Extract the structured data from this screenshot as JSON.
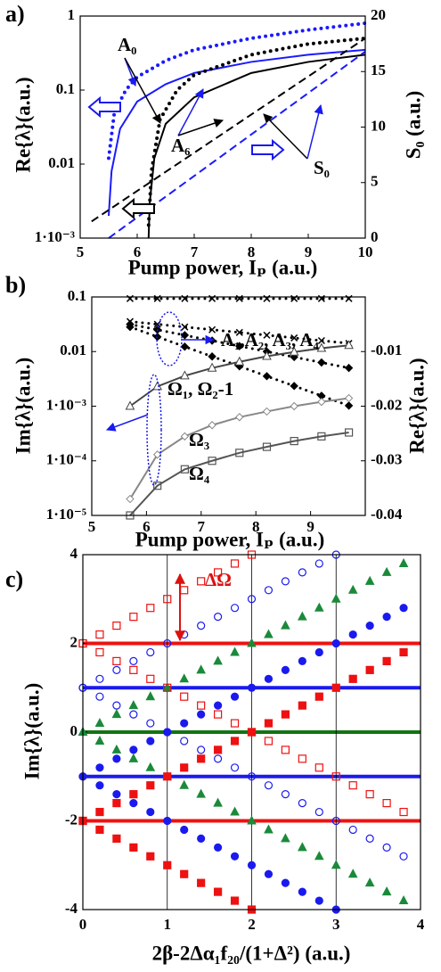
{
  "chart_data": [
    {
      "type": "line",
      "label": "a)",
      "xlabel": "Pump power, Iₚ (a.u.)",
      "ylabel": "Re{λ}(a.u.)",
      "y2label": "S₀ (a.u.)",
      "xlim": [
        5,
        10
      ],
      "xticks": [
        5,
        6,
        7,
        8,
        9,
        10
      ],
      "ylim": [
        0.001,
        1
      ],
      "ylog": true,
      "yticks": [
        1,
        0.1,
        0.01,
        {
          "value": 0.001,
          "label": "1·10⁻³"
        }
      ],
      "y2lim": [
        0,
        20
      ],
      "y2ticks": [
        0,
        5,
        10,
        15,
        20
      ],
      "annotations": [
        "A₀",
        "A₆",
        "S₀"
      ],
      "series": [
        {
          "color": "#1a1aff",
          "line": "dotted",
          "x": [
            5.5,
            5.6,
            5.8,
            6,
            6.5,
            7,
            8,
            9,
            10
          ],
          "values": [
            0.012,
            0.05,
            0.1,
            0.15,
            0.25,
            0.35,
            0.5,
            0.65,
            0.8
          ]
        },
        {
          "color": "#1a1aff",
          "line": "solid",
          "x": [
            5.5,
            5.55,
            5.7,
            6,
            6.5,
            7,
            8,
            9,
            10
          ],
          "values": [
            0.002,
            0.008,
            0.03,
            0.07,
            0.12,
            0.17,
            0.24,
            0.3,
            0.35
          ]
        },
        {
          "color": "#000000",
          "line": "dotted",
          "x": [
            6.2,
            6.25,
            6.4,
            6.7,
            7,
            8,
            9,
            10
          ],
          "values": [
            0.0015,
            0.008,
            0.04,
            0.1,
            0.16,
            0.3,
            0.42,
            0.5
          ]
        },
        {
          "color": "#000000",
          "line": "solid",
          "x": [
            6.2,
            6.22,
            6.3,
            6.5,
            7,
            8,
            9,
            10
          ],
          "values": [
            0.001,
            0.003,
            0.012,
            0.035,
            0.08,
            0.17,
            0.24,
            0.3
          ]
        },
        {
          "color": "#000000",
          "line": "dashed",
          "axis": "y2",
          "x": [
            5.2,
            10
          ],
          "values": [
            1.5,
            18
          ]
        },
        {
          "color": "#1a1aff",
          "line": "dashed",
          "axis": "y2",
          "x": [
            5.5,
            10
          ],
          "values": [
            0,
            16.8
          ]
        }
      ]
    },
    {
      "type": "line",
      "label": "b)",
      "xlabel": "Pump power, Iₚ (a.u.)",
      "ylabel": "Im{λ}(a.u.)",
      "y2label": "Re{λ}(a.u.)",
      "xlim": [
        5,
        10
      ],
      "xticks": [
        5,
        6,
        7,
        8,
        9
      ],
      "ylim": [
        1e-05,
        0.1
      ],
      "ylog": true,
      "yticks": [
        0.1,
        0.01,
        {
          "value": 0.001,
          "label": "1·10⁻³"
        },
        {
          "value": 0.0001,
          "label": "1·10⁻⁴"
        },
        {
          "value": 1e-05,
          "label": "1·10⁻⁵"
        }
      ],
      "y2lim": [
        -0.04,
        0
      ],
      "y2ticks": [
        -0.01,
        -0.02,
        -0.03,
        -0.04
      ],
      "annotations": [
        "A₁,A₂, A₃, A₄",
        "Ω₁, Ω₂-1",
        "Ω₃",
        "Ω₄"
      ],
      "x": [
        5.7,
        6.2,
        6.7,
        7.2,
        7.7,
        8.2,
        8.7,
        9.2,
        9.7
      ],
      "series": [
        {
          "color": "#000000",
          "line": "dotted",
          "marker": "cross",
          "axis": "y2",
          "values": [
            -0.0003,
            -0.0003,
            -0.0003,
            -0.0003,
            -0.0003,
            -0.0003,
            -0.0003,
            -0.0003,
            -0.0003
          ]
        },
        {
          "color": "#000000",
          "line": "dotted",
          "marker": "cross",
          "axis": "y2",
          "values": [
            -0.0045,
            -0.005,
            -0.0055,
            -0.006,
            -0.0065,
            -0.007,
            -0.0075,
            -0.008,
            -0.0085
          ]
        },
        {
          "color": "#000000",
          "line": "dotted",
          "marker": "diamond",
          "axis": "y2",
          "values": [
            -0.005,
            -0.006,
            -0.007,
            -0.008,
            -0.009,
            -0.01,
            -0.011,
            -0.012,
            -0.013
          ]
        },
        {
          "color": "#000000",
          "line": "dotted",
          "marker": "diamond",
          "axis": "y2",
          "values": [
            -0.0055,
            -0.0073,
            -0.0091,
            -0.0109,
            -0.0127,
            -0.0145,
            -0.0163,
            -0.0181,
            -0.0199
          ]
        },
        {
          "color": "#444444",
          "line": "solid",
          "marker": "triangle-open",
          "values": [
            0.001,
            0.0023,
            0.0036,
            0.005,
            0.0065,
            0.0082,
            0.0098,
            0.0115,
            0.013
          ]
        },
        {
          "color": "#888888",
          "line": "solid",
          "marker": "diamond-open",
          "values": [
            2e-05,
            0.00013,
            0.00028,
            0.00045,
            0.00063,
            0.0008,
            0.001,
            0.0012,
            0.0014
          ]
        },
        {
          "color": "#555555",
          "line": "solid",
          "marker": "square-open",
          "values": [
            1e-05,
            3.5e-05,
            7e-05,
            0.0001,
            0.00014,
            0.00018,
            0.00023,
            0.00028,
            0.00033
          ]
        }
      ]
    },
    {
      "type": "scatter",
      "label": "c)",
      "xlabel": "2β-2Δα₁f₂₀/(1+Δ²) (a.u.)",
      "ylabel": "Im{λ}(a.u.)",
      "xlim": [
        0,
        4
      ],
      "xticks": [
        0,
        1,
        2,
        3,
        4
      ],
      "xgrid": true,
      "ylim": [
        -4,
        4
      ],
      "yticks": [
        -4,
        -2,
        0,
        2,
        4
      ],
      "annotations": [
        "ΔΩ"
      ],
      "hlines": [
        {
          "value": 2,
          "color": "#ee1111"
        },
        {
          "value": 1,
          "color": "#1a1aee"
        },
        {
          "value": 0,
          "color": "#137313"
        },
        {
          "value": -1,
          "color": "#1a1aee"
        },
        {
          "value": -2,
          "color": "#ee1111"
        }
      ],
      "x": [
        0,
        0.2,
        0.4,
        0.6,
        0.8,
        1,
        1.2,
        1.4,
        1.6,
        1.8,
        2,
        2.2,
        2.4,
        2.6,
        2.8,
        3,
        3.2,
        3.4,
        3.6,
        3.8
      ],
      "series": [
        {
          "color": "#1a8a3a",
          "marker": "triangle",
          "values": [
            0,
            0.2,
            0.4,
            0.6,
            0.8,
            1,
            1.2,
            1.4,
            1.6,
            1.8,
            2,
            2.2,
            2.4,
            2.6,
            2.8,
            3,
            3.2,
            3.4,
            3.6,
            3.8
          ]
        },
        {
          "color": "#1a8a3a",
          "marker": "triangle",
          "values": [
            0,
            -0.2,
            -0.4,
            -0.6,
            -0.8,
            -1,
            -1.2,
            -1.4,
            -1.6,
            -1.8,
            -2,
            -2.2,
            -2.4,
            -2.6,
            -2.8,
            -3,
            -3.2,
            -3.4,
            -3.6,
            -3.8
          ]
        },
        {
          "color": "#1a1aee",
          "marker": "circle-open",
          "values": [
            1,
            1.2,
            1.4,
            1.6,
            1.8,
            2,
            2.2,
            2.4,
            2.6,
            2.8,
            3,
            3.2,
            3.4,
            3.6,
            3.8,
            4,
            null,
            null,
            null,
            null
          ]
        },
        {
          "color": "#1a1aee",
          "marker": "circle-open",
          "values": [
            1,
            0.8,
            0.6,
            0.4,
            0.2,
            0,
            -0.2,
            -0.4,
            -0.6,
            -0.8,
            -1,
            -1.2,
            -1.4,
            -1.6,
            -1.8,
            -2,
            -2.2,
            -2.4,
            -2.6,
            -2.8
          ]
        },
        {
          "color": "#1a1aee",
          "marker": "circle",
          "values": [
            -1,
            -0.8,
            -0.6,
            -0.4,
            -0.2,
            0,
            0.2,
            0.4,
            0.6,
            0.8,
            1,
            1.2,
            1.4,
            1.6,
            1.8,
            2,
            2.2,
            2.4,
            2.6,
            2.8
          ]
        },
        {
          "color": "#1a1aee",
          "marker": "circle",
          "values": [
            -1,
            -1.2,
            -1.4,
            -1.6,
            -1.8,
            -2,
            -2.2,
            -2.4,
            -2.6,
            -2.8,
            -3,
            -3.2,
            -3.4,
            -3.6,
            -3.8,
            -4,
            null,
            null,
            null,
            null
          ]
        },
        {
          "color": "#ee1111",
          "marker": "square-open",
          "values": [
            2,
            2.2,
            2.4,
            2.6,
            2.8,
            3,
            3.2,
            3.4,
            3.6,
            3.8,
            4,
            null,
            null,
            null,
            null,
            null,
            null,
            null,
            null,
            null
          ]
        },
        {
          "color": "#ee1111",
          "marker": "square-open",
          "values": [
            2,
            1.8,
            1.6,
            1.4,
            1.2,
            1,
            0.8,
            0.6,
            0.4,
            0.2,
            0,
            -0.2,
            -0.4,
            -0.6,
            -0.8,
            -1,
            -1.2,
            -1.4,
            -1.6,
            -1.8
          ]
        },
        {
          "color": "#ee1111",
          "marker": "square",
          "values": [
            -2,
            -1.8,
            -1.6,
            -1.4,
            -1.2,
            -1,
            -0.8,
            -0.6,
            -0.4,
            -0.2,
            0,
            0.2,
            0.4,
            0.6,
            0.8,
            1,
            1.2,
            1.4,
            1.6,
            1.8
          ]
        },
        {
          "color": "#ee1111",
          "marker": "square",
          "values": [
            -2,
            -2.2,
            -2.4,
            -2.6,
            -2.8,
            -3,
            -3.2,
            -3.4,
            -3.6,
            -3.8,
            -4,
            null,
            null,
            null,
            null,
            null,
            null,
            null,
            null,
            null
          ]
        }
      ]
    }
  ]
}
